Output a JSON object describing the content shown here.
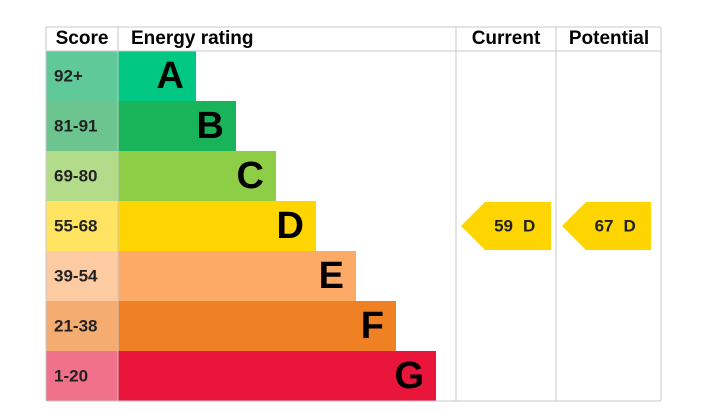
{
  "headers": {
    "score": "Score",
    "energy_rating": "Energy rating",
    "current": "Current",
    "potential": "Potential"
  },
  "bands": [
    {
      "score": "92+",
      "letter": "A",
      "color": "#00c781",
      "score_color": "#5fc99a"
    },
    {
      "score": "81-91",
      "letter": "B",
      "color": "#19b459",
      "score_color": "#6cc58e"
    },
    {
      "score": "69-80",
      "letter": "C",
      "color": "#8dce46",
      "score_color": "#b3dc8a"
    },
    {
      "score": "55-68",
      "letter": "D",
      "color": "#ffd500",
      "score_color": "#ffe462"
    },
    {
      "score": "39-54",
      "letter": "E",
      "color": "#fcaa65",
      "score_color": "#fdcba2"
    },
    {
      "score": "21-38",
      "letter": "F",
      "color": "#ef8023",
      "score_color": "#f4ac70"
    },
    {
      "score": "1-20",
      "letter": "G",
      "color": "#e9153b",
      "score_color": "#f0718a"
    }
  ],
  "current": {
    "score": "59",
    "rating": "D"
  },
  "potential": {
    "score": "67",
    "rating": "D"
  }
}
